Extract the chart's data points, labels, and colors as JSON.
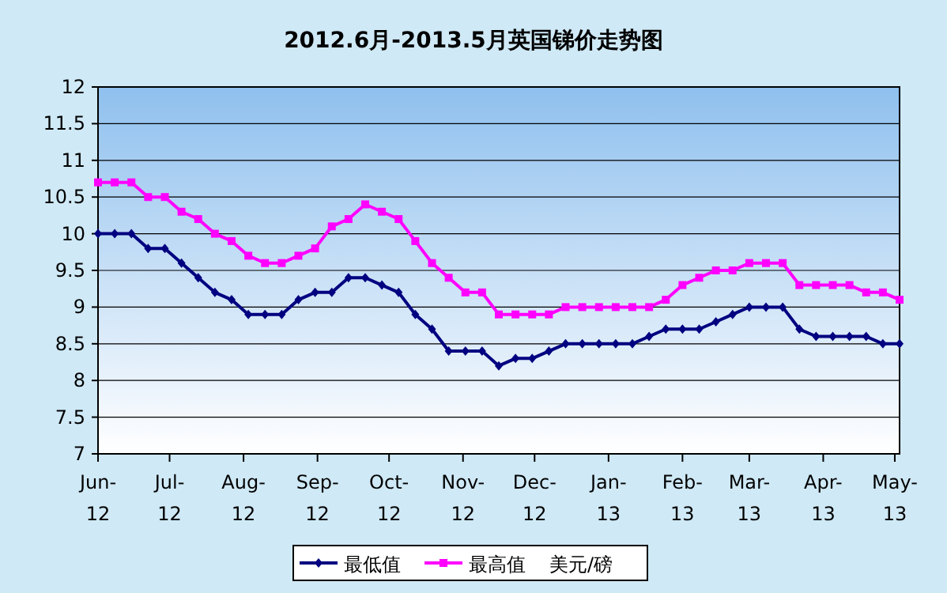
{
  "chart_data": {
    "type": "line",
    "title": "2012.6月-2013.5月英国锑价走势图",
    "legend_title": "美元/磅",
    "x": [
      "2012-06-01",
      "2012-06-08",
      "2012-06-15",
      "2012-06-22",
      "2012-06-29",
      "2012-07-06",
      "2012-07-13",
      "2012-07-20",
      "2012-07-27",
      "2012-08-03",
      "2012-08-10",
      "2012-08-17",
      "2012-08-24",
      "2012-08-31",
      "2012-09-07",
      "2012-09-14",
      "2012-09-21",
      "2012-09-28",
      "2012-10-05",
      "2012-10-12",
      "2012-10-19",
      "2012-10-26",
      "2012-11-02",
      "2012-11-09",
      "2012-11-16",
      "2012-11-23",
      "2012-11-30",
      "2012-12-07",
      "2012-12-14",
      "2012-12-21",
      "2012-12-28",
      "2013-01-04",
      "2013-01-11",
      "2013-01-18",
      "2013-01-25",
      "2013-02-01",
      "2013-02-08",
      "2013-02-15",
      "2013-02-22",
      "2013-03-01",
      "2013-03-08",
      "2013-03-15",
      "2013-03-22",
      "2013-03-29",
      "2013-04-05",
      "2013-04-12",
      "2013-04-19",
      "2013-04-26",
      "2013-05-03"
    ],
    "series": [
      {
        "name": "最低值",
        "color": "#000080",
        "marker": "diamond",
        "values": [
          10.0,
          10.0,
          10.0,
          9.8,
          9.8,
          9.6,
          9.4,
          9.2,
          9.1,
          8.9,
          8.9,
          8.9,
          9.1,
          9.2,
          9.2,
          9.4,
          9.4,
          9.3,
          9.2,
          8.9,
          8.7,
          8.4,
          8.4,
          8.4,
          8.2,
          8.3,
          8.3,
          8.4,
          8.5,
          8.5,
          8.5,
          8.5,
          8.5,
          8.6,
          8.7,
          8.7,
          8.7,
          8.8,
          8.9,
          9.0,
          9.0,
          9.0,
          8.7,
          8.6,
          8.6,
          8.6,
          8.6,
          8.5,
          8.5
        ]
      },
      {
        "name": "最高值",
        "color": "#ff00ff",
        "marker": "square",
        "values": [
          10.7,
          10.7,
          10.7,
          10.5,
          10.5,
          10.3,
          10.2,
          10.0,
          9.9,
          9.7,
          9.6,
          9.6,
          9.7,
          9.8,
          10.1,
          10.2,
          10.4,
          10.3,
          10.2,
          9.9,
          9.6,
          9.4,
          9.2,
          9.2,
          8.9,
          8.9,
          8.9,
          8.9,
          9.0,
          9.0,
          9.0,
          9.0,
          9.0,
          9.0,
          9.1,
          9.3,
          9.4,
          9.5,
          9.5,
          9.6,
          9.6,
          9.6,
          9.3,
          9.3,
          9.3,
          9.3,
          9.2,
          9.2,
          9.1
        ]
      }
    ],
    "xlim": [
      "2012-06-01",
      "2013-05-03"
    ],
    "xticks": [
      {
        "value": "2012-06-01",
        "label": "Jun-12"
      },
      {
        "value": "2012-07-01",
        "label": "Jul-12"
      },
      {
        "value": "2012-08-01",
        "label": "Aug-12"
      },
      {
        "value": "2012-09-01",
        "label": "Sep-12"
      },
      {
        "value": "2012-10-01",
        "label": "Oct-12"
      },
      {
        "value": "2012-11-01",
        "label": "Nov-12"
      },
      {
        "value": "2012-12-01",
        "label": "Dec-12"
      },
      {
        "value": "2013-01-01",
        "label": "Jan-13"
      },
      {
        "value": "2013-02-01",
        "label": "Feb-13"
      },
      {
        "value": "2013-03-01",
        "label": "Mar-13"
      },
      {
        "value": "2013-04-01",
        "label": "Apr-13"
      },
      {
        "value": "2013-05-01",
        "label": "May-13"
      }
    ],
    "ylim": [
      7,
      12
    ],
    "yticks": [
      7,
      7.5,
      8,
      8.5,
      9,
      9.5,
      10,
      10.5,
      11,
      11.5,
      12
    ],
    "grid": "y",
    "legend": "bottom",
    "line_style": "solid"
  }
}
